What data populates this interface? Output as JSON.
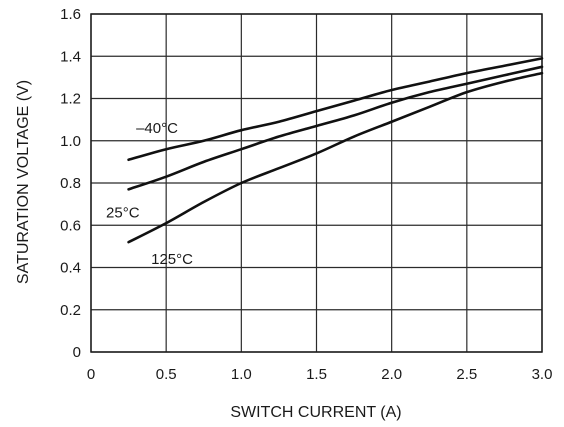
{
  "chart_data": {
    "type": "line",
    "xlabel": "SWITCH CURRENT (A)",
    "ylabel": "SATURATION VOLTAGE (V)",
    "xlim": [
      0,
      3.0
    ],
    "ylim": [
      0,
      1.6
    ],
    "xticks": [
      0,
      0.5,
      1.0,
      1.5,
      2.0,
      2.5,
      3.0
    ],
    "xtick_labels": [
      "0",
      "0.5",
      "1.0",
      "1.5",
      "2.0",
      "2.5",
      "3.0"
    ],
    "yticks": [
      0,
      0.2,
      0.4,
      0.6,
      0.8,
      1.0,
      1.2,
      1.4,
      1.6
    ],
    "ytick_labels": [
      "0",
      "0.2",
      "0.4",
      "0.6",
      "0.8",
      "1.0",
      "1.2",
      "1.4",
      "1.6"
    ],
    "grid": true,
    "series": [
      {
        "name": "–40°C",
        "label_at": [
          0.3,
          1.06
        ],
        "points": [
          [
            0.25,
            0.91
          ],
          [
            0.5,
            0.96
          ],
          [
            0.75,
            1.0
          ],
          [
            1.0,
            1.05
          ],
          [
            1.25,
            1.09
          ],
          [
            1.5,
            1.14
          ],
          [
            1.75,
            1.19
          ],
          [
            2.0,
            1.24
          ],
          [
            2.25,
            1.28
          ],
          [
            2.5,
            1.32
          ],
          [
            2.75,
            1.355
          ],
          [
            3.0,
            1.39
          ]
        ]
      },
      {
        "name": "25°C",
        "label_at": [
          0.1,
          0.66
        ],
        "points": [
          [
            0.25,
            0.77
          ],
          [
            0.5,
            0.83
          ],
          [
            0.75,
            0.9
          ],
          [
            1.0,
            0.96
          ],
          [
            1.25,
            1.02
          ],
          [
            1.5,
            1.07
          ],
          [
            1.75,
            1.12
          ],
          [
            2.0,
            1.18
          ],
          [
            2.25,
            1.23
          ],
          [
            2.5,
            1.27
          ],
          [
            2.75,
            1.31
          ],
          [
            3.0,
            1.35
          ]
        ]
      },
      {
        "name": "125°C",
        "label_at": [
          0.4,
          0.44
        ],
        "points": [
          [
            0.25,
            0.52
          ],
          [
            0.5,
            0.61
          ],
          [
            0.75,
            0.71
          ],
          [
            1.0,
            0.8
          ],
          [
            1.25,
            0.87
          ],
          [
            1.5,
            0.94
          ],
          [
            1.75,
            1.02
          ],
          [
            2.0,
            1.09
          ],
          [
            2.25,
            1.16
          ],
          [
            2.5,
            1.23
          ],
          [
            2.75,
            1.28
          ],
          [
            3.0,
            1.32
          ]
        ]
      }
    ]
  }
}
